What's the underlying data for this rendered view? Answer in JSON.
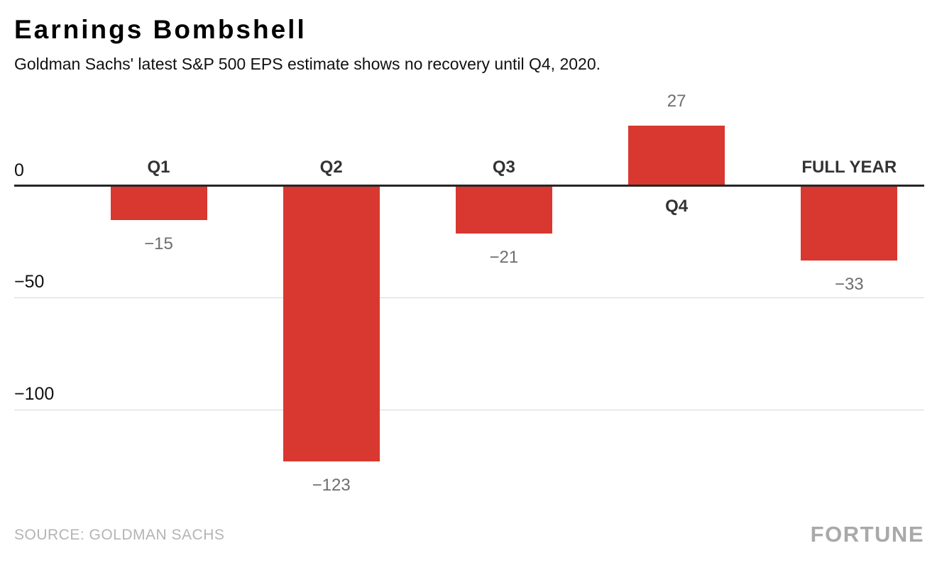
{
  "header": {
    "title": "Earnings Bombshell",
    "subtitle": "Goldman Sachs' latest S&P 500 EPS estimate shows no recovery until Q4, 2020."
  },
  "chart_data": {
    "type": "bar",
    "title": "Earnings Bombshell",
    "subtitle": "Goldman Sachs' latest S&P 500 EPS estimate shows no recovery until Q4, 2020.",
    "categories": [
      "Q1",
      "Q2",
      "Q3",
      "Q4",
      "FULL YEAR"
    ],
    "values": [
      -15,
      -123,
      -21,
      27,
      -33
    ],
    "value_labels": [
      "−15",
      "−123",
      "−21",
      "27",
      "−33"
    ],
    "xlabel": "",
    "ylabel": "",
    "y_ticks": [
      {
        "value": 0,
        "label": "0"
      },
      {
        "value": -50,
        "label": "−50"
      },
      {
        "value": -100,
        "label": "−100"
      }
    ],
    "ylim": [
      -140,
      45
    ],
    "grid": "horizontal",
    "legend": "none",
    "bar_color": "#D8382F"
  },
  "colors": {
    "bar": "#D8382F",
    "axis": "#262626",
    "grid": "#D8D8D8",
    "category_label": "#333333",
    "value_label": "#6E6E6E",
    "source_text": "#B4B4B4",
    "brand_text": "#A9A9A9"
  },
  "footer": {
    "source": "SOURCE: GOLDMAN SACHS",
    "brand": "FORTUNE"
  }
}
